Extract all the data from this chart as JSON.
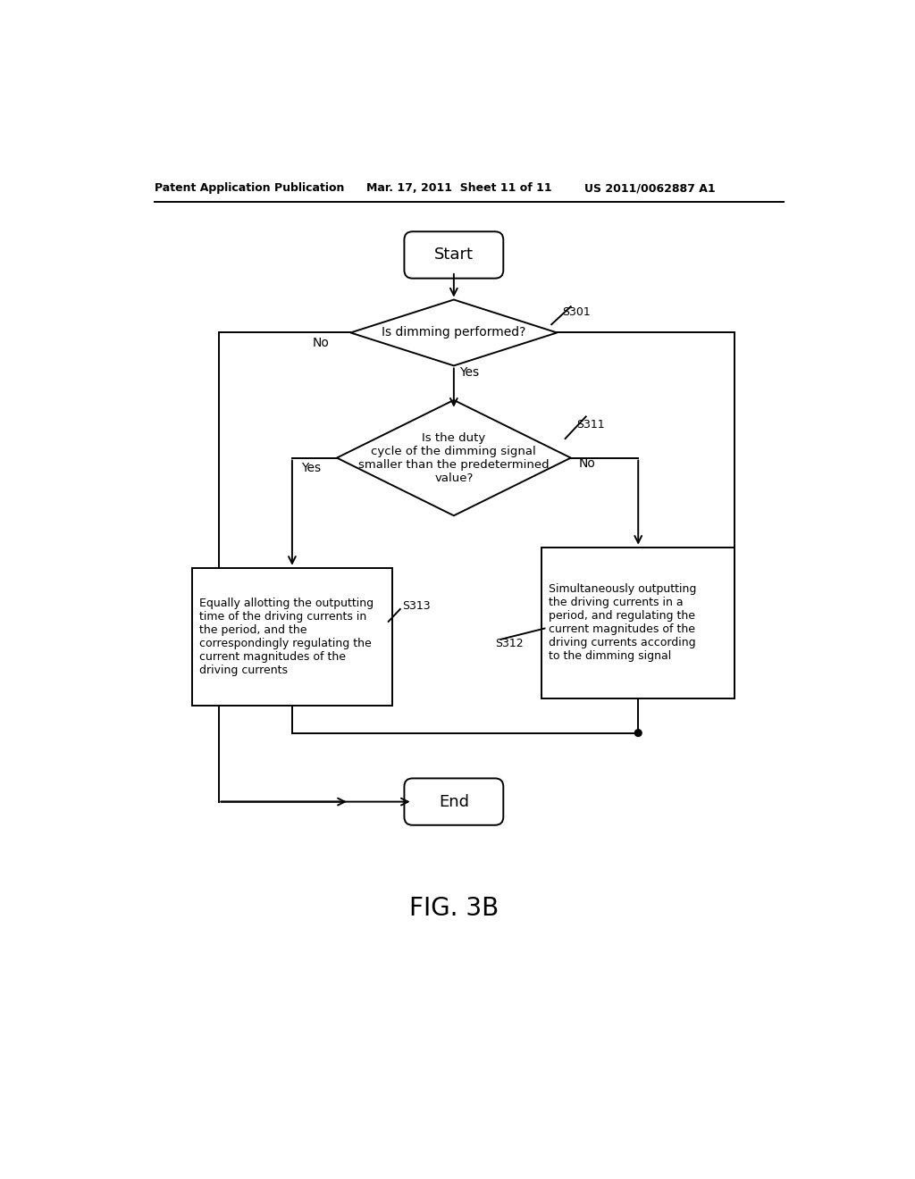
{
  "bg_color": "#ffffff",
  "header_left": "Patent Application Publication",
  "header_mid": "Mar. 17, 2011  Sheet 11 of 11",
  "header_right": "US 2011/0062887 A1",
  "figure_label": "FIG. 3B",
  "start_label": "Start",
  "end_label": "End",
  "diamond1_label": "Is dimming performed?",
  "diamond1_step": "S301",
  "diamond1_yes": "Yes",
  "diamond1_no": "No",
  "diamond2_label": "Is the duty\ncycle of the dimming signal\nsmaller than the predetermined\nvalue?",
  "diamond2_step": "S311",
  "diamond2_yes": "Yes",
  "diamond2_no": "No",
  "box_left_label": "Equally allotting the outputting\ntime of the driving currents in\nthe period, and the\ncorrespondingly regulating the\ncurrent magnitudes of the\ndriving currents",
  "box_left_step": "S313",
  "box_right_label": "Simultaneously outputting\nthe driving currents in a\nperiod, and regulating the\ncurrent magnitudes of the\ndriving currents according\nto the dimming signal",
  "box_right_step": "S312",
  "line_color": "#000000",
  "text_color": "#000000",
  "line_width": 1.4
}
